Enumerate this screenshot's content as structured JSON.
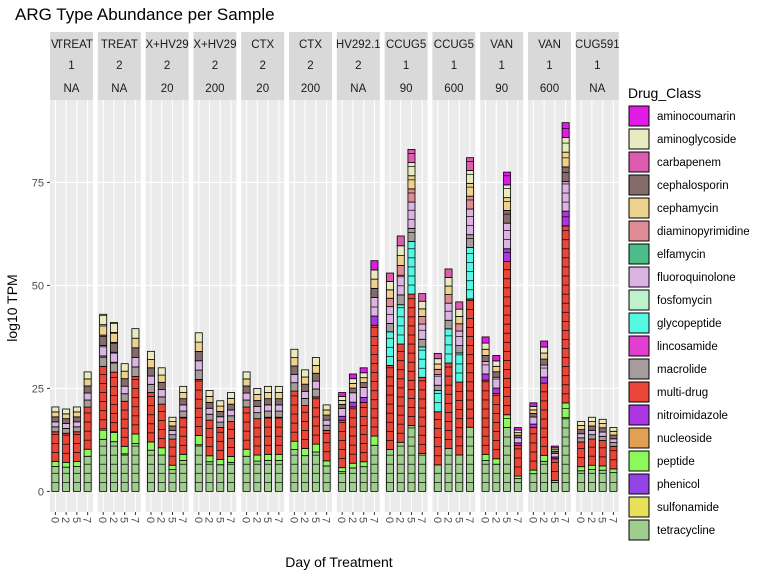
{
  "chart_data": {
    "type": "bar",
    "stacked": true,
    "title": "ARG Type Abundance per Sample",
    "xlabel": "Day of Treatment",
    "ylabel": "log10 TPM",
    "ylim": [
      -5,
      95
    ],
    "yticks": [
      0,
      25,
      50,
      75
    ],
    "x_tick_labels": [
      "0",
      "2",
      "5",
      "7"
    ],
    "grid": true,
    "legend": {
      "title": "Drug_Class",
      "position": "right"
    },
    "drug_classes": [
      {
        "name": "aminocoumarin",
        "color": "#e21ae6"
      },
      {
        "name": "aminoglycoside",
        "color": "#e8eabf"
      },
      {
        "name": "carbapenem",
        "color": "#dd5caf"
      },
      {
        "name": "cephalosporin",
        "color": "#866b6b"
      },
      {
        "name": "cephamycin",
        "color": "#edd18d"
      },
      {
        "name": "diaminopyrimidine",
        "color": "#df8c95"
      },
      {
        "name": "elfamycin",
        "color": "#4bbd8a"
      },
      {
        "name": "fluoroquinolone",
        "color": "#dcb4e3"
      },
      {
        "name": "fosfomycin",
        "color": "#bdf2cc"
      },
      {
        "name": "glycopeptide",
        "color": "#55f8e3"
      },
      {
        "name": "lincosamide",
        "color": "#e23fd0"
      },
      {
        "name": "macrolide",
        "color": "#a69c9c"
      },
      {
        "name": "multi-drug",
        "color": "#ea4637"
      },
      {
        "name": "nitroimidazole",
        "color": "#ab35e0"
      },
      {
        "name": "nucleoside",
        "color": "#e1a052"
      },
      {
        "name": "peptide",
        "color": "#8cf859"
      },
      {
        "name": "phenicol",
        "color": "#9344e4"
      },
      {
        "name": "sulfonamide",
        "color": "#e6e159"
      },
      {
        "name": "tetracycline",
        "color": "#9fcd8d"
      }
    ],
    "facets": [
      {
        "strip": [
          "V",
          "TREAT",
          "1",
          "NA"
        ],
        "totals": [
          20.5,
          20,
          20.5,
          29
        ],
        "profile": "base"
      },
      {
        "strip": [
          "TREAT",
          "2",
          "NA"
        ],
        "totals": [
          43,
          41,
          31,
          39.5
        ],
        "profile": "base"
      },
      {
        "strip": [
          "X+HV29",
          "2",
          "20"
        ],
        "totals": [
          34,
          30,
          18,
          25.5
        ],
        "profile": "base"
      },
      {
        "strip": [
          "X+HV29",
          "2",
          "200"
        ],
        "totals": [
          38.5,
          24.5,
          22,
          24
        ],
        "profile": "base"
      },
      {
        "strip": [
          "CTX",
          "2",
          "20"
        ],
        "totals": [
          29,
          25,
          25.5,
          25.5
        ],
        "profile": "base"
      },
      {
        "strip": [
          "CTX",
          "2",
          "200"
        ],
        "totals": [
          34.5,
          29.5,
          32.5,
          21
        ],
        "profile": "base"
      },
      {
        "strip": [
          "HV292.1",
          "2",
          "NA"
        ],
        "totals": [
          24,
          28.5,
          30,
          56
        ],
        "profile": "multi"
      },
      {
        "strip": [
          "CCUG5",
          "1",
          "90"
        ],
        "totals": [
          53,
          62,
          83,
          48
        ],
        "profile": "glyco"
      },
      {
        "strip": [
          "CCUG5",
          "1",
          "600"
        ],
        "totals": [
          33.5,
          54,
          46,
          81
        ],
        "profile": "glyco"
      },
      {
        "strip": [
          "VAN",
          "1",
          "90"
        ],
        "totals": [
          37.5,
          33,
          77.5,
          15.5
        ],
        "profile": "multi"
      },
      {
        "strip": [
          "VAN",
          "1",
          "600"
        ],
        "totals": [
          21.5,
          36.5,
          11,
          89.5
        ],
        "profile": "multi"
      },
      {
        "strip": [
          "CUG591",
          "1",
          "NA"
        ],
        "totals": [
          17,
          18,
          17.5,
          15.5
        ],
        "profile": "base"
      }
    ]
  }
}
